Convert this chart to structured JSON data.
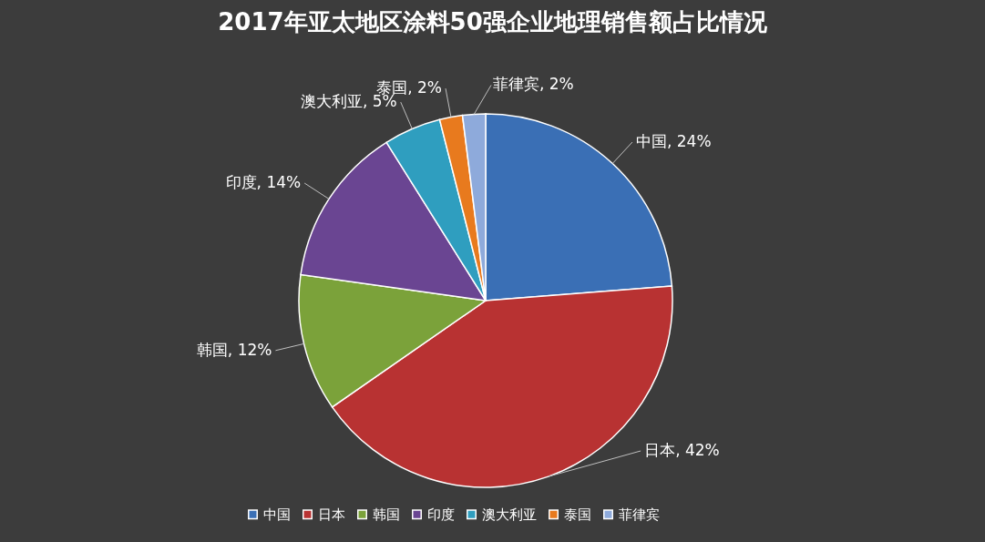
{
  "chart_data": {
    "type": "pie",
    "title": "2017年亚太地区涂料50强企业地理销售额占比情况",
    "categories": [
      "中国",
      "日本",
      "韩国",
      "印度",
      "澳大利亚",
      "泰国",
      "菲律宾"
    ],
    "values": [
      24,
      42,
      12,
      14,
      5,
      2,
      2
    ],
    "value_labels": [
      "中国, 24%",
      "日本, 42%",
      "韩国, 12%",
      "印度, 14%",
      "澳大利亚, 5%",
      "泰国, 2%",
      "菲律宾, 2%"
    ],
    "colors": [
      "#3a6fb5",
      "#b83232",
      "#7ba23a",
      "#6a4592",
      "#2f9ebf",
      "#e87a1e",
      "#8eaadb"
    ],
    "legend": "bottom"
  }
}
